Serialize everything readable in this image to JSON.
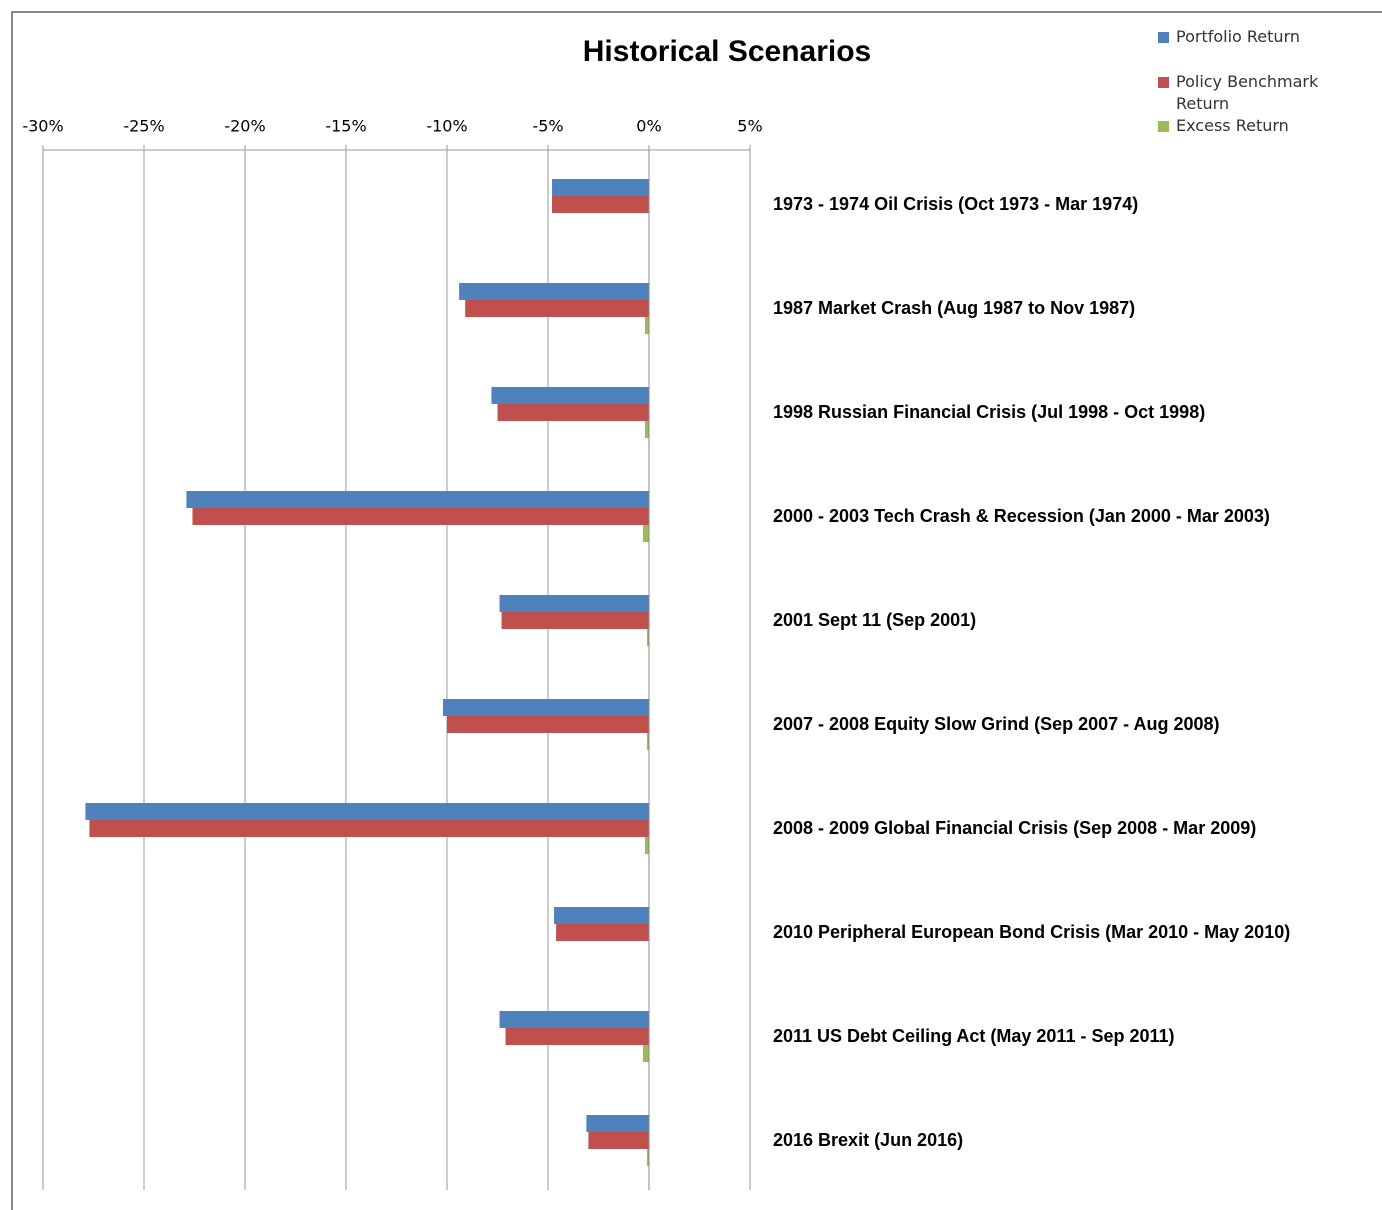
{
  "chart_data": {
    "type": "hbar",
    "title": "Historical Scenarios",
    "categories": [
      "1973 - 1974 Oil Crisis (Oct 1973 - Mar 1974)",
      "1987 Market Crash (Aug 1987 to Nov 1987)",
      "1998 Russian Financial Crisis (Jul 1998 - Oct 1998)",
      "2000 - 2003 Tech Crash & Recession (Jan 2000 - Mar 2003)",
      "2001 Sept 11 (Sep 2001)",
      "2007 - 2008 Equity Slow Grind (Sep 2007 - Aug 2008)",
      "2008 - 2009 Global Financial Crisis (Sep 2008 - Mar 2009)",
      "2010 Peripheral European Bond Crisis (Mar 2010 - May 2010)",
      "2011 US Debt Ceiling Act (May 2011 - Sep 2011)",
      "2016 Brexit (Jun 2016)"
    ],
    "series": [
      {
        "name": "Portfolio Return",
        "color": "#4f81bd",
        "values": [
          -4.8,
          -9.4,
          -7.8,
          -22.9,
          -7.4,
          -10.2,
          -27.9,
          -4.7,
          -7.4,
          -3.1
        ]
      },
      {
        "name": "Policy Benchmark Return",
        "color": "#c0504d",
        "values": [
          -4.8,
          -9.1,
          -7.5,
          -22.6,
          -7.3,
          -10.0,
          -27.7,
          -4.6,
          -7.1,
          -3.0
        ]
      },
      {
        "name": "Excess Return",
        "color": "#9bbb59",
        "values": [
          0,
          -0.2,
          -0.2,
          -0.3,
          -0.1,
          -0.1,
          -0.2,
          0,
          -0.3,
          -0.1
        ]
      }
    ],
    "xlim": [
      -30,
      5
    ],
    "xticks": [
      {
        "value": -30,
        "label": "-30%"
      },
      {
        "value": -25,
        "label": "-25%"
      },
      {
        "value": -20,
        "label": "-20%"
      },
      {
        "value": -15,
        "label": "-15%"
      },
      {
        "value": -10,
        "label": "-10%"
      },
      {
        "value": -5,
        "label": "-5%"
      },
      {
        "value": 0,
        "label": "0%"
      },
      {
        "value": 5,
        "label": "5%"
      }
    ],
    "grid": true,
    "legend": "top-right"
  }
}
